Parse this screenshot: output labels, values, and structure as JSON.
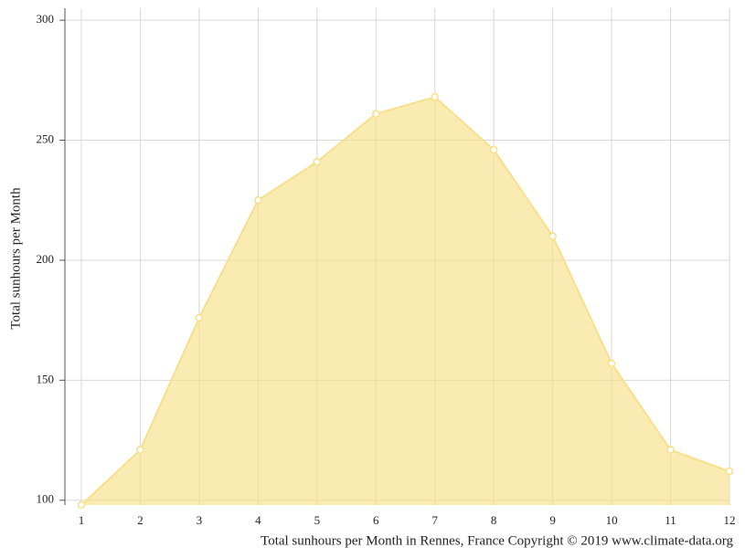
{
  "chart_data": {
    "type": "area",
    "y_label": "Total sunhours per Month",
    "x_label": "Total sunhours per Month in Rennes, France Copyright © 2019 www.climate-data.org",
    "x": [
      1,
      2,
      3,
      4,
      5,
      6,
      7,
      8,
      9,
      10,
      11,
      12
    ],
    "series": [
      {
        "color": "#f7e08a",
        "values": [
          98,
          121,
          176,
          225,
          241,
          261,
          268,
          246,
          210,
          157,
          121,
          112
        ]
      }
    ],
    "xlim": [
      1,
      12
    ],
    "xticks": [
      1,
      2,
      3,
      4,
      5,
      6,
      7,
      8,
      9,
      10,
      11,
      12
    ],
    "ylim": [
      98,
      305
    ],
    "yticks": [
      100,
      150,
      200,
      250,
      300
    ],
    "grid": true
  }
}
